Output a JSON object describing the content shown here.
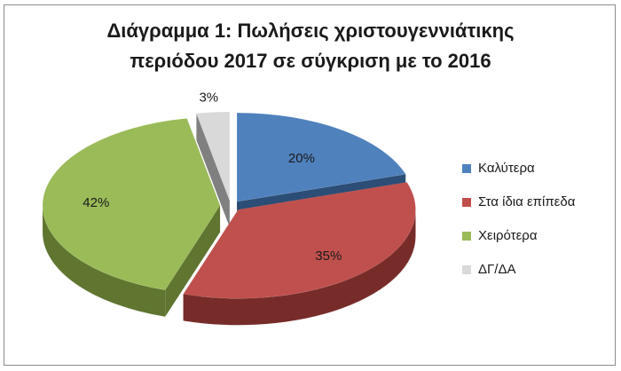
{
  "chart_data": {
    "type": "pie",
    "title_lines": [
      "Διάγραμμα 1: Πωλήσεις χριστουγεννιάτικης",
      "περιόδου 2017 σε σύγκριση με το 2016"
    ],
    "categories": [
      "Καλύτερα",
      "Στα ίδια επίπεδα",
      "Χειρότερα",
      "ΔΓ/ΔΑ"
    ],
    "values": [
      20,
      35,
      42,
      3
    ],
    "labels": [
      "20%",
      "35%",
      "42%",
      "3%"
    ],
    "colors": [
      "#4F81BD",
      "#C0504D",
      "#9BBB59",
      "#D9D9D9"
    ],
    "side_colors": [
      "#2C4D75",
      "#772C2A",
      "#5F7530",
      "#808080"
    ],
    "exploded": true,
    "three_d": true,
    "legend_position": "right"
  }
}
